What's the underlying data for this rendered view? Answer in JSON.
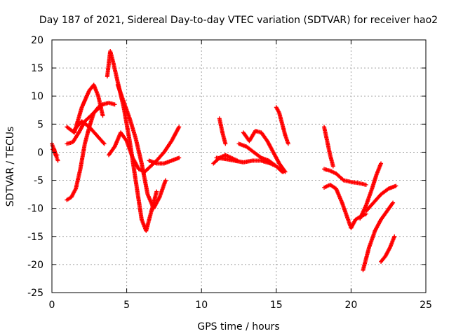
{
  "chart_data": {
    "type": "scatter",
    "title": "Day 187 of 2021, Sidereal Day-to-day VTEC variation (SDTVAR) for receiver hao2",
    "xlabel": "GPS time / hours",
    "ylabel": "SDTVAR / TECUs",
    "xlim": [
      0,
      25
    ],
    "ylim": [
      -25,
      20
    ],
    "xticks": [
      0,
      5,
      10,
      15,
      20,
      25
    ],
    "yticks": [
      -25,
      -20,
      -15,
      -10,
      -5,
      0,
      5,
      10,
      15,
      20
    ],
    "grid": true,
    "marker": "+",
    "color": "#ff0000",
    "series": [
      {
        "x": [
          0.0,
          0.1,
          0.2,
          0.3,
          0.4
        ],
        "y": [
          1.5,
          0.8,
          0.0,
          -0.8,
          -1.5
        ]
      },
      {
        "x": [
          0.05,
          0.15,
          0.25,
          0.35
        ],
        "y": [
          0.5,
          0.5,
          -0.5,
          -0.5
        ]
      },
      {
        "x": [
          1.0,
          1.3,
          1.6,
          1.9,
          2.2,
          2.5,
          2.8,
          3.1,
          3.4
        ],
        "y": [
          -8.5,
          -8.0,
          -6.5,
          -3.0,
          1.5,
          4.5,
          7.0,
          8.0,
          8.5
        ]
      },
      {
        "x": [
          1.0,
          1.4,
          1.8,
          2.2,
          2.6,
          3.0,
          3.4,
          3.8,
          4.2
        ],
        "y": [
          1.5,
          1.8,
          3.5,
          5.5,
          6.5,
          7.5,
          8.5,
          8.8,
          8.5
        ]
      },
      {
        "x": [
          1.0,
          1.5,
          2.0,
          2.5,
          2.8,
          3.1,
          3.4
        ],
        "y": [
          4.5,
          3.5,
          8.0,
          11.0,
          12.0,
          10.0,
          6.5
        ]
      },
      {
        "x": [
          1.5,
          2.0,
          2.5,
          3.0,
          3.5
        ],
        "y": [
          4.0,
          5.5,
          4.5,
          3.0,
          1.5
        ]
      },
      {
        "x": [
          3.8,
          4.2,
          4.6,
          5.0,
          5.4,
          5.8,
          6.2,
          6.6,
          7.0,
          7.5,
          8.0,
          8.5
        ],
        "y": [
          -0.5,
          1.0,
          3.5,
          2.0,
          -1.0,
          -3.0,
          -3.5,
          -2.5,
          -1.5,
          0.0,
          2.0,
          4.5
        ]
      },
      {
        "x": [
          3.7,
          3.9,
          4.1,
          4.4,
          4.8,
          5.2,
          5.6,
          6.0,
          6.3,
          6.6,
          7.0
        ],
        "y": [
          13.5,
          18.0,
          16.0,
          12.5,
          8.0,
          2.0,
          -5.0,
          -12.0,
          -14.0,
          -11.0,
          -7.0
        ]
      },
      {
        "x": [
          4.4,
          4.8,
          5.2,
          5.6,
          6.0,
          6.4,
          6.8,
          7.2,
          7.6
        ],
        "y": [
          12.0,
          9.0,
          6.0,
          2.5,
          -2.0,
          -7.5,
          -10.0,
          -8.0,
          -5.0
        ]
      },
      {
        "x": [
          6.5,
          7.0,
          7.5,
          8.0,
          8.5
        ],
        "y": [
          -1.5,
          -2.0,
          -2.0,
          -1.5,
          -1.0
        ]
      },
      {
        "x": [
          10.8,
          11.2,
          11.6,
          12.0,
          12.4
        ],
        "y": [
          -2.0,
          -1.0,
          -0.5,
          -1.0,
          -1.5
        ]
      },
      {
        "x": [
          11.2,
          11.4,
          11.6
        ],
        "y": [
          6.0,
          3.5,
          1.5
        ]
      },
      {
        "x": [
          11.0,
          11.6,
          12.2,
          12.8,
          13.4,
          14.0,
          14.6,
          15.0,
          15.4
        ],
        "y": [
          -1.0,
          -1.2,
          -1.5,
          -1.8,
          -1.5,
          -1.5,
          -2.0,
          -2.5,
          -3.5
        ]
      },
      {
        "x": [
          12.5,
          13.0,
          13.5,
          14.0,
          14.5,
          15.0,
          15.5
        ],
        "y": [
          1.5,
          1.0,
          0.0,
          -1.0,
          -1.5,
          -2.5,
          -3.5
        ]
      },
      {
        "x": [
          12.8,
          13.2,
          13.6,
          14.0,
          14.4,
          14.8,
          15.2,
          15.6
        ],
        "y": [
          3.5,
          2.0,
          3.8,
          3.5,
          2.0,
          0.0,
          -2.0,
          -3.5
        ]
      },
      {
        "x": [
          15.0,
          15.2,
          15.4,
          15.6,
          15.8
        ],
        "y": [
          8.0,
          7.0,
          5.0,
          3.0,
          1.5
        ]
      },
      {
        "x": [
          18.2,
          18.4,
          18.6,
          18.8
        ],
        "y": [
          4.5,
          2.0,
          -0.5,
          -2.5
        ]
      },
      {
        "x": [
          18.2,
          18.6,
          19.0,
          19.5,
          20.0,
          20.5,
          21.0
        ],
        "y": [
          -3.0,
          -3.3,
          -3.8,
          -5.0,
          -5.3,
          -5.5,
          -5.8
        ]
      },
      {
        "x": [
          18.2,
          18.6,
          19.0,
          19.4,
          19.8,
          20.0,
          20.3,
          20.6,
          21.0
        ],
        "y": [
          -6.3,
          -5.8,
          -6.5,
          -9.0,
          -12.0,
          -13.5,
          -12.0,
          -11.5,
          -11.0
        ]
      },
      {
        "x": [
          20.6,
          21.0,
          21.4,
          21.7,
          22.0
        ],
        "y": [
          -11.8,
          -9.5,
          -6.5,
          -4.0,
          -2.0
        ]
      },
      {
        "x": [
          21.0,
          21.5,
          22.0,
          22.5,
          23.0
        ],
        "y": [
          -10.5,
          -9.0,
          -7.5,
          -6.5,
          -6.0
        ]
      },
      {
        "x": [
          20.8,
          21.2,
          21.6,
          22.0,
          22.4,
          22.8
        ],
        "y": [
          -21.0,
          -17.0,
          -14.0,
          -12.0,
          -10.5,
          -9.0
        ]
      },
      {
        "x": [
          22.0,
          22.3,
          22.6,
          22.9
        ],
        "y": [
          -19.5,
          -18.5,
          -17.0,
          -15.0
        ]
      }
    ]
  }
}
